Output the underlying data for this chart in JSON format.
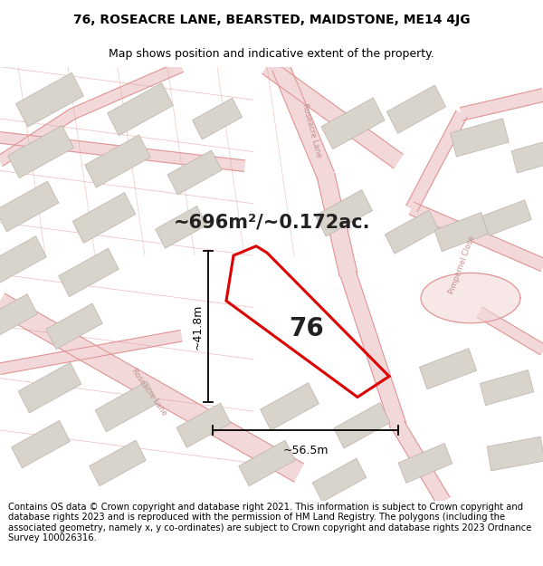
{
  "title": "76, ROSEACRE LANE, BEARSTED, MAIDSTONE, ME14 4JG",
  "subtitle": "Map shows position and indicative extent of the property.",
  "area_text": "~696m²/~0.172ac.",
  "label_76": "76",
  "dim_width": "~56.5m",
  "dim_height": "~41.8m",
  "footer": "Contains OS data © Crown copyright and database right 2021. This information is subject to Crown copyright and database rights 2023 and is reproduced with the permission of HM Land Registry. The polygons (including the associated geometry, namely x, y co-ordinates) are subject to Crown copyright and database rights 2023 Ordnance Survey 100026316.",
  "bg_color": "#f7f3f0",
  "road_fill": "#f2d8d8",
  "road_edge": "#e09090",
  "building_face": "#d8d4cc",
  "building_edge": "#c0b8b0",
  "highlight_color": "#dd0000",
  "text_dark": "#222222",
  "text_road": "#c09090",
  "title_fontsize": 10,
  "subtitle_fontsize": 9,
  "area_fontsize": 15,
  "label_fontsize": 20,
  "footer_fontsize": 7.2,
  "dim_fontsize": 9
}
